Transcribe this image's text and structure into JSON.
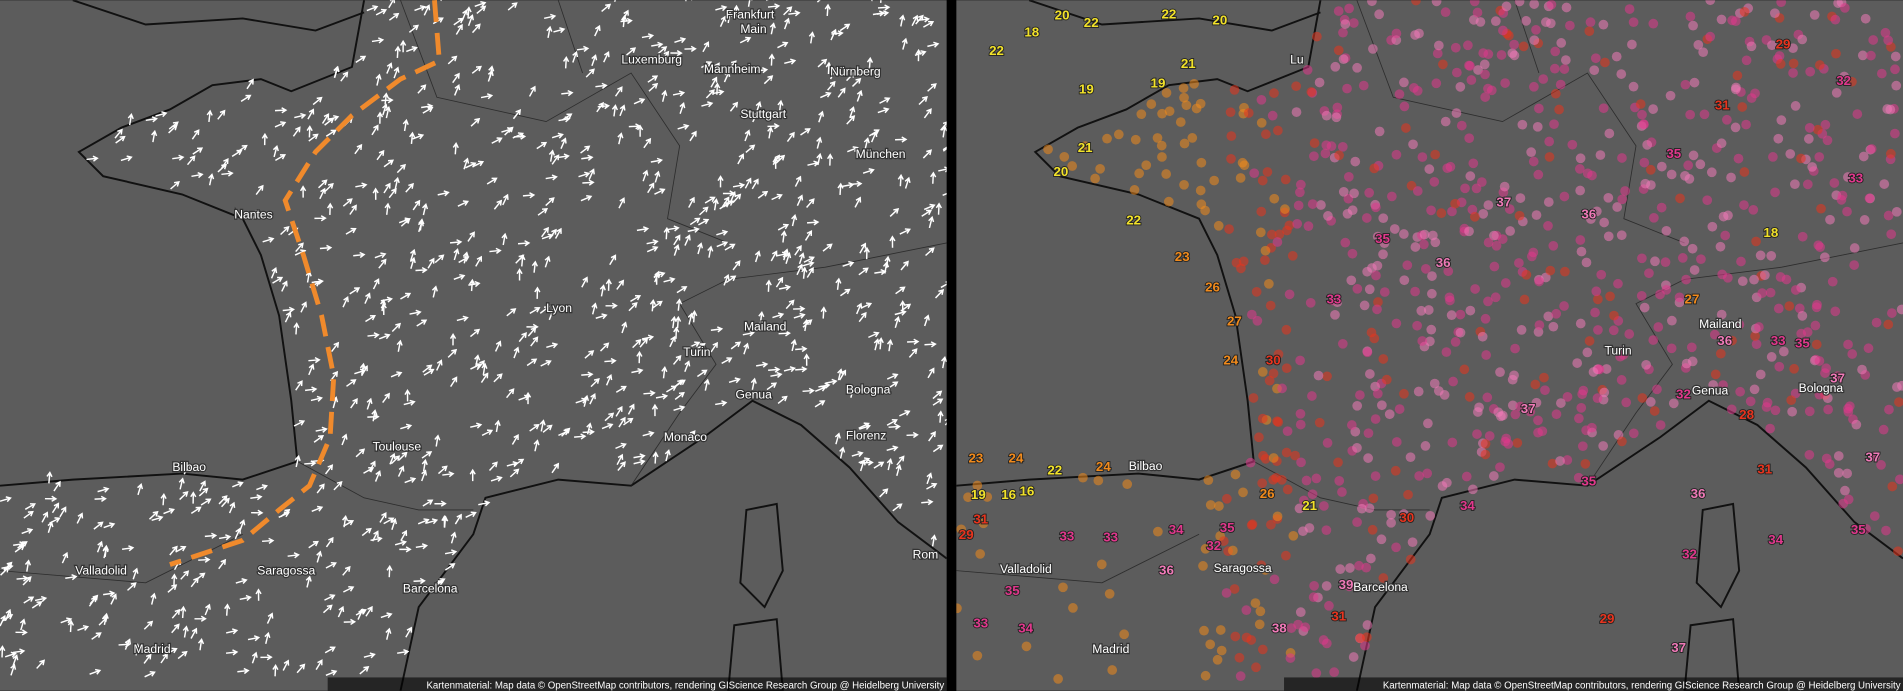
{
  "left_map": {
    "cities": [
      "Frankfurt",
      "Main",
      "Luxemburg",
      "Mannheim",
      "Nürnberg",
      "Stuttgart",
      "München",
      "Nantes",
      "Lyon",
      "Mailand",
      "Turin",
      "Genua",
      "Bologna",
      "Florenz",
      "Monaco",
      "Toulouse",
      "Bilbao",
      "Valladolid",
      "Saragossa",
      "Barcelona",
      "Madrid",
      "Rom"
    ],
    "attribution": "Kartenmaterial: Map data © OpenStreetMap contributors, rendering GIScience Research Group @ Heidelberg University"
  },
  "right_map": {
    "cities": [
      "Bilbao",
      "Valladolid",
      "Saragossa",
      "Barcelona",
      "Madrid",
      "Turin",
      "Mailand",
      "Genua",
      "Bologna",
      "Lu"
    ],
    "temperatures": [
      19,
      16,
      16,
      23,
      24,
      22,
      24,
      22,
      18,
      20,
      22,
      22,
      20,
      19,
      19,
      21,
      20,
      21,
      22,
      23,
      26,
      27,
      24,
      30,
      33,
      35,
      36,
      37,
      36,
      35,
      31,
      29,
      32,
      33,
      29,
      31,
      33,
      33,
      34,
      35,
      32,
      36,
      35,
      33,
      34,
      38,
      39,
      31,
      37,
      29,
      32,
      36,
      33,
      35,
      37,
      31,
      34,
      35,
      37,
      36,
      32,
      28,
      27,
      18,
      37,
      35,
      34,
      30,
      21,
      26
    ],
    "attribution": "Kartenmaterial: Map data © OpenStreetMap contributors, rendering GIScience Research Group @ Heidelberg University"
  }
}
